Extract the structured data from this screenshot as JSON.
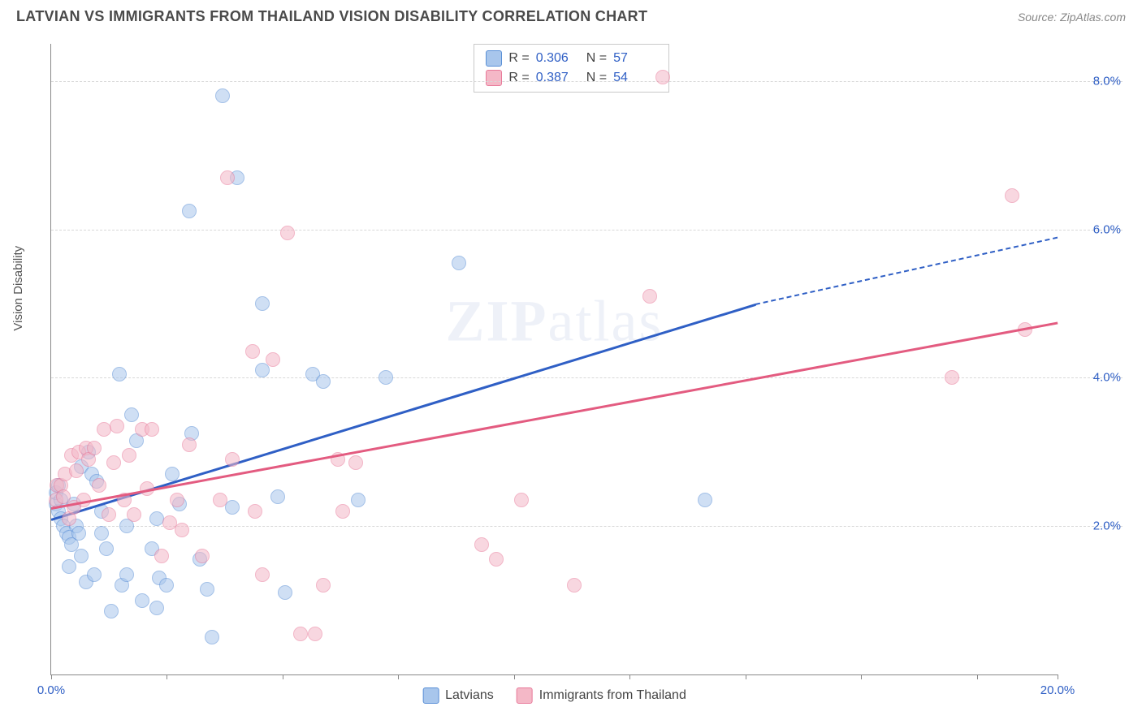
{
  "header": {
    "title": "LATVIAN VS IMMIGRANTS FROM THAILAND VISION DISABILITY CORRELATION CHART",
    "source": "Source: ZipAtlas.com"
  },
  "watermark": {
    "bold": "ZIP",
    "light": "atlas"
  },
  "chart": {
    "type": "scatter",
    "y_axis_label": "Vision Disability",
    "background_color": "#ffffff",
    "grid_color": "#d8d8d8",
    "axis_color": "#888888",
    "label_fontsize": 15,
    "tick_color": "#2f5fc5",
    "xlim": [
      0,
      20
    ],
    "ylim": [
      0,
      8.5
    ],
    "xticks": [
      0,
      2.3,
      4.6,
      6.9,
      9.2,
      11.5,
      13.8,
      16.1,
      18.4,
      20
    ],
    "xtick_labels": {
      "0": "0.0%",
      "20": "20.0%"
    },
    "yticks": [
      2,
      4,
      6,
      8
    ],
    "ytick_labels": {
      "2": "2.0%",
      "4": "4.0%",
      "6": "6.0%",
      "8": "8.0%"
    },
    "point_radius": 9,
    "point_opacity": 0.55,
    "series": [
      {
        "name": "Latvians",
        "fill": "#a8c6ec",
        "stroke": "#5a8fd6",
        "line_color": "#2f5fc5",
        "r_value": "0.306",
        "n_value": "57",
        "trend": {
          "x0": 0,
          "y0": 2.1,
          "x1": 14,
          "y1": 5.0,
          "dash_to_x": 20,
          "dash_to_y": 5.9
        },
        "points": [
          [
            0.1,
            2.3
          ],
          [
            0.1,
            2.45
          ],
          [
            0.15,
            2.55
          ],
          [
            0.15,
            2.2
          ],
          [
            0.2,
            2.35
          ],
          [
            0.2,
            2.1
          ],
          [
            0.25,
            2.0
          ],
          [
            0.3,
            1.9
          ],
          [
            0.35,
            1.45
          ],
          [
            0.35,
            1.85
          ],
          [
            0.4,
            1.75
          ],
          [
            0.45,
            2.3
          ],
          [
            0.5,
            2.0
          ],
          [
            0.55,
            1.9
          ],
          [
            0.6,
            1.6
          ],
          [
            0.6,
            2.8
          ],
          [
            0.7,
            1.25
          ],
          [
            0.75,
            3.0
          ],
          [
            0.8,
            2.7
          ],
          [
            0.85,
            1.35
          ],
          [
            0.9,
            2.6
          ],
          [
            1.0,
            2.2
          ],
          [
            1.0,
            1.9
          ],
          [
            1.1,
            1.7
          ],
          [
            1.2,
            0.85
          ],
          [
            1.35,
            4.05
          ],
          [
            1.4,
            1.2
          ],
          [
            1.5,
            2.0
          ],
          [
            1.5,
            1.35
          ],
          [
            1.6,
            3.5
          ],
          [
            1.7,
            3.15
          ],
          [
            1.8,
            1.0
          ],
          [
            2.0,
            1.7
          ],
          [
            2.1,
            2.1
          ],
          [
            2.15,
            1.3
          ],
          [
            2.3,
            1.2
          ],
          [
            2.4,
            2.7
          ],
          [
            2.55,
            2.3
          ],
          [
            2.8,
            3.25
          ],
          [
            2.95,
            1.55
          ],
          [
            2.75,
            6.25
          ],
          [
            3.2,
            0.5
          ],
          [
            3.7,
            6.7
          ],
          [
            3.4,
            7.8
          ],
          [
            3.6,
            2.25
          ],
          [
            3.1,
            1.15
          ],
          [
            4.2,
            5.0
          ],
          [
            4.2,
            4.1
          ],
          [
            4.5,
            2.4
          ],
          [
            4.65,
            1.1
          ],
          [
            5.2,
            4.05
          ],
          [
            5.4,
            3.95
          ],
          [
            6.1,
            2.35
          ],
          [
            6.65,
            4.0
          ],
          [
            8.1,
            5.55
          ],
          [
            13.0,
            2.35
          ],
          [
            2.1,
            0.9
          ]
        ]
      },
      {
        "name": "Immigrants from Thailand",
        "fill": "#f4b8c7",
        "stroke": "#e87a9a",
        "line_color": "#e35b80",
        "r_value": "0.387",
        "n_value": "54",
        "trend": {
          "x0": 0,
          "y0": 2.25,
          "x1": 20,
          "y1": 4.75
        },
        "points": [
          [
            0.1,
            2.35
          ],
          [
            0.12,
            2.55
          ],
          [
            0.2,
            2.55
          ],
          [
            0.25,
            2.4
          ],
          [
            0.28,
            2.7
          ],
          [
            0.35,
            2.1
          ],
          [
            0.4,
            2.95
          ],
          [
            0.45,
            2.25
          ],
          [
            0.5,
            2.75
          ],
          [
            0.55,
            3.0
          ],
          [
            0.65,
            2.35
          ],
          [
            0.7,
            3.05
          ],
          [
            0.75,
            2.9
          ],
          [
            0.85,
            3.05
          ],
          [
            0.95,
            2.55
          ],
          [
            1.05,
            3.3
          ],
          [
            1.15,
            2.15
          ],
          [
            1.25,
            2.85
          ],
          [
            1.3,
            3.35
          ],
          [
            1.45,
            2.35
          ],
          [
            1.55,
            2.95
          ],
          [
            1.65,
            2.15
          ],
          [
            1.8,
            3.3
          ],
          [
            1.9,
            2.5
          ],
          [
            2.0,
            3.3
          ],
          [
            2.2,
            1.6
          ],
          [
            2.35,
            2.05
          ],
          [
            2.5,
            2.35
          ],
          [
            2.6,
            1.95
          ],
          [
            2.75,
            3.1
          ],
          [
            3.0,
            1.6
          ],
          [
            3.35,
            2.35
          ],
          [
            3.5,
            6.7
          ],
          [
            3.6,
            2.9
          ],
          [
            4.0,
            4.35
          ],
          [
            4.05,
            2.2
          ],
          [
            4.2,
            1.35
          ],
          [
            4.4,
            4.25
          ],
          [
            4.7,
            5.95
          ],
          [
            4.95,
            0.55
          ],
          [
            5.25,
            0.55
          ],
          [
            5.4,
            1.2
          ],
          [
            5.7,
            2.9
          ],
          [
            5.8,
            2.2
          ],
          [
            6.05,
            2.85
          ],
          [
            8.55,
            1.75
          ],
          [
            8.85,
            1.55
          ],
          [
            9.35,
            2.35
          ],
          [
            10.4,
            1.2
          ],
          [
            12.15,
            8.05
          ],
          [
            11.9,
            5.1
          ],
          [
            17.9,
            4.0
          ],
          [
            19.1,
            6.45
          ],
          [
            19.35,
            4.65
          ]
        ]
      }
    ],
    "stat_legend": {
      "labels": {
        "R": "R =",
        "N": "N ="
      }
    },
    "category_legend": {
      "items": [
        "Latvians",
        "Immigrants from Thailand"
      ]
    }
  }
}
